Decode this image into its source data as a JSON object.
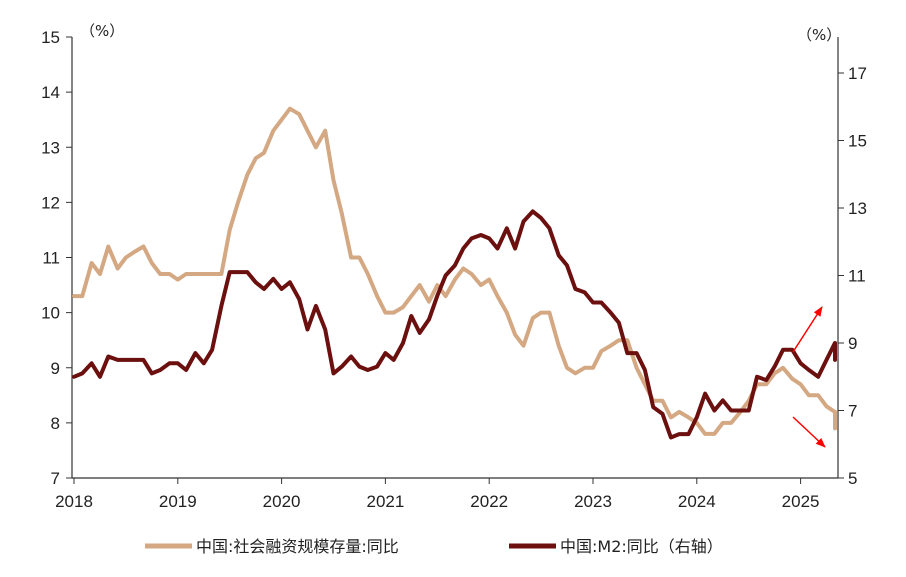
{
  "chart_data": {
    "type": "line",
    "left_axis": {
      "unit_label": "（%）",
      "ylim": [
        7,
        15
      ],
      "ticks": [
        7,
        8,
        9,
        10,
        11,
        12,
        13,
        14,
        15
      ]
    },
    "right_axis": {
      "unit_label": "（%）",
      "ylim": [
        5,
        17
      ],
      "ticks": [
        5,
        7,
        9,
        11,
        13,
        15,
        17
      ]
    },
    "x_axis": {
      "start": 2018.0,
      "end": 2025.33,
      "ticks": [
        "2018",
        "2019",
        "2020",
        "2021",
        "2022",
        "2023",
        "2024",
        "2025"
      ]
    },
    "legend_position": "bottom",
    "grid": false,
    "series": [
      {
        "name": "中国:社会融资规模存量:同比",
        "axis": "left",
        "color": "#d4a882",
        "points": [
          [
            2018.0,
            10.3
          ],
          [
            2018.08,
            10.3
          ],
          [
            2018.17,
            10.9
          ],
          [
            2018.25,
            10.7
          ],
          [
            2018.33,
            11.2
          ],
          [
            2018.42,
            10.8
          ],
          [
            2018.5,
            11.0
          ],
          [
            2018.58,
            11.1
          ],
          [
            2018.67,
            11.2
          ],
          [
            2018.75,
            10.9
          ],
          [
            2018.83,
            10.7
          ],
          [
            2018.92,
            10.7
          ],
          [
            2019.0,
            10.6
          ],
          [
            2019.08,
            10.7
          ],
          [
            2019.17,
            10.7
          ],
          [
            2019.25,
            10.7
          ],
          [
            2019.33,
            10.7
          ],
          [
            2019.42,
            10.7
          ],
          [
            2019.5,
            11.5
          ],
          [
            2019.58,
            12.0
          ],
          [
            2019.67,
            12.5
          ],
          [
            2019.75,
            12.8
          ],
          [
            2019.83,
            12.9
          ],
          [
            2019.92,
            13.3
          ],
          [
            2020.0,
            13.5
          ],
          [
            2020.08,
            13.7
          ],
          [
            2020.17,
            13.6
          ],
          [
            2020.25,
            13.3
          ],
          [
            2020.33,
            13.0
          ],
          [
            2020.42,
            13.3
          ],
          [
            2020.5,
            12.4
          ],
          [
            2020.58,
            11.8
          ],
          [
            2020.67,
            11.0
          ],
          [
            2020.75,
            11.0
          ],
          [
            2020.83,
            10.7
          ],
          [
            2020.92,
            10.3
          ],
          [
            2021.0,
            10.0
          ],
          [
            2021.08,
            10.0
          ],
          [
            2021.17,
            10.1
          ],
          [
            2021.25,
            10.3
          ],
          [
            2021.33,
            10.5
          ],
          [
            2021.42,
            10.2
          ],
          [
            2021.5,
            10.5
          ],
          [
            2021.58,
            10.3
          ],
          [
            2021.67,
            10.6
          ],
          [
            2021.75,
            10.8
          ],
          [
            2021.83,
            10.7
          ],
          [
            2021.92,
            10.5
          ],
          [
            2022.0,
            10.6
          ],
          [
            2022.08,
            10.3
          ],
          [
            2022.17,
            10.0
          ],
          [
            2022.25,
            9.6
          ],
          [
            2022.33,
            9.4
          ],
          [
            2022.42,
            9.9
          ],
          [
            2022.5,
            10.0
          ],
          [
            2022.58,
            10.0
          ],
          [
            2022.67,
            9.4
          ],
          [
            2022.75,
            9.0
          ],
          [
            2022.83,
            8.9
          ],
          [
            2022.92,
            9.0
          ],
          [
            2023.0,
            9.0
          ],
          [
            2023.08,
            9.3
          ],
          [
            2023.17,
            9.4
          ],
          [
            2023.25,
            9.5
          ],
          [
            2023.33,
            9.5
          ],
          [
            2023.42,
            9.0
          ],
          [
            2023.5,
            8.7
          ],
          [
            2023.58,
            8.4
          ],
          [
            2023.67,
            8.4
          ],
          [
            2023.75,
            8.1
          ],
          [
            2023.83,
            8.2
          ],
          [
            2023.92,
            8.1
          ],
          [
            2024.0,
            8.0
          ],
          [
            2024.08,
            7.8
          ],
          [
            2024.17,
            7.8
          ],
          [
            2024.25,
            8.0
          ],
          [
            2024.33,
            8.0
          ],
          [
            2024.42,
            8.2
          ],
          [
            2024.5,
            8.4
          ],
          [
            2024.58,
            8.7
          ],
          [
            2024.67,
            8.7
          ],
          [
            2024.75,
            8.9
          ],
          [
            2024.83,
            9.0
          ],
          [
            2024.92,
            8.8
          ],
          [
            2025.0,
            8.7
          ],
          [
            2025.08,
            8.5
          ],
          [
            2025.17,
            8.5
          ],
          [
            2025.25,
            8.3
          ],
          [
            2025.33,
            8.2
          ],
          [
            2025.42,
            8.2
          ],
          [
            2025.5,
            7.9
          ]
        ]
      },
      {
        "name": "中国:M2:同比（右轴）",
        "axis": "right",
        "color": "#6b0f0f",
        "points": [
          [
            2018.0,
            8.0
          ],
          [
            2018.08,
            8.1
          ],
          [
            2018.17,
            8.4
          ],
          [
            2018.25,
            8.0
          ],
          [
            2018.33,
            8.6
          ],
          [
            2018.42,
            8.5
          ],
          [
            2018.5,
            8.5
          ],
          [
            2018.58,
            8.5
          ],
          [
            2018.67,
            8.5
          ],
          [
            2018.75,
            8.1
          ],
          [
            2018.83,
            8.2
          ],
          [
            2018.92,
            8.4
          ],
          [
            2019.0,
            8.4
          ],
          [
            2019.08,
            8.2
          ],
          [
            2019.17,
            8.7
          ],
          [
            2019.25,
            8.4
          ],
          [
            2019.33,
            8.8
          ],
          [
            2019.42,
            10.1
          ],
          [
            2019.5,
            11.1
          ],
          [
            2019.58,
            11.1
          ],
          [
            2019.67,
            11.1
          ],
          [
            2019.75,
            10.8
          ],
          [
            2019.83,
            10.6
          ],
          [
            2019.92,
            10.9
          ],
          [
            2020.0,
            10.6
          ],
          [
            2020.08,
            10.8
          ],
          [
            2020.17,
            10.3
          ],
          [
            2020.25,
            9.4
          ],
          [
            2020.33,
            10.1
          ],
          [
            2020.42,
            9.4
          ],
          [
            2020.5,
            8.1
          ],
          [
            2020.58,
            8.3
          ],
          [
            2020.67,
            8.6
          ],
          [
            2020.75,
            8.3
          ],
          [
            2020.83,
            8.2
          ],
          [
            2020.92,
            8.3
          ],
          [
            2021.0,
            8.7
          ],
          [
            2021.08,
            8.5
          ],
          [
            2021.17,
            9.0
          ],
          [
            2021.25,
            9.8
          ],
          [
            2021.33,
            9.3
          ],
          [
            2021.42,
            9.7
          ],
          [
            2021.5,
            10.4
          ],
          [
            2021.58,
            11.0
          ],
          [
            2021.67,
            11.3
          ],
          [
            2021.75,
            11.8
          ],
          [
            2021.83,
            12.1
          ],
          [
            2021.92,
            12.2
          ],
          [
            2022.0,
            12.1
          ],
          [
            2022.08,
            11.8
          ],
          [
            2022.17,
            12.4
          ],
          [
            2022.25,
            11.8
          ],
          [
            2022.33,
            12.6
          ],
          [
            2022.42,
            12.9
          ],
          [
            2022.5,
            12.7
          ],
          [
            2022.58,
            12.4
          ],
          [
            2022.67,
            11.6
          ],
          [
            2022.75,
            11.3
          ],
          [
            2022.83,
            10.6
          ],
          [
            2022.92,
            10.5
          ],
          [
            2023.0,
            10.2
          ],
          [
            2023.08,
            10.2
          ],
          [
            2023.17,
            9.9
          ],
          [
            2023.25,
            9.6
          ],
          [
            2023.33,
            8.7
          ],
          [
            2023.42,
            8.7
          ],
          [
            2023.5,
            8.2
          ],
          [
            2023.58,
            7.1
          ],
          [
            2023.67,
            6.9
          ],
          [
            2023.75,
            6.2
          ],
          [
            2023.83,
            6.3
          ],
          [
            2023.92,
            6.3
          ],
          [
            2024.0,
            6.8
          ],
          [
            2024.08,
            7.5
          ],
          [
            2024.17,
            7.0
          ],
          [
            2024.25,
            7.3
          ],
          [
            2024.33,
            7.0
          ],
          [
            2024.42,
            7.0
          ],
          [
            2024.5,
            7.0
          ],
          [
            2024.58,
            8.0
          ],
          [
            2024.67,
            7.9
          ],
          [
            2024.75,
            8.3
          ],
          [
            2024.83,
            8.8
          ],
          [
            2024.92,
            8.8
          ],
          [
            2025.0,
            8.4
          ],
          [
            2025.08,
            8.2
          ],
          [
            2025.17,
            8.0
          ],
          [
            2025.25,
            8.5
          ],
          [
            2025.33,
            9.0
          ],
          [
            2025.42,
            9.0
          ],
          [
            2025.5,
            8.5
          ]
        ]
      }
    ],
    "annotations": [
      {
        "type": "arrow",
        "direction": "up",
        "color": "#ff0000"
      },
      {
        "type": "arrow",
        "direction": "down",
        "color": "#ff0000"
      }
    ]
  }
}
